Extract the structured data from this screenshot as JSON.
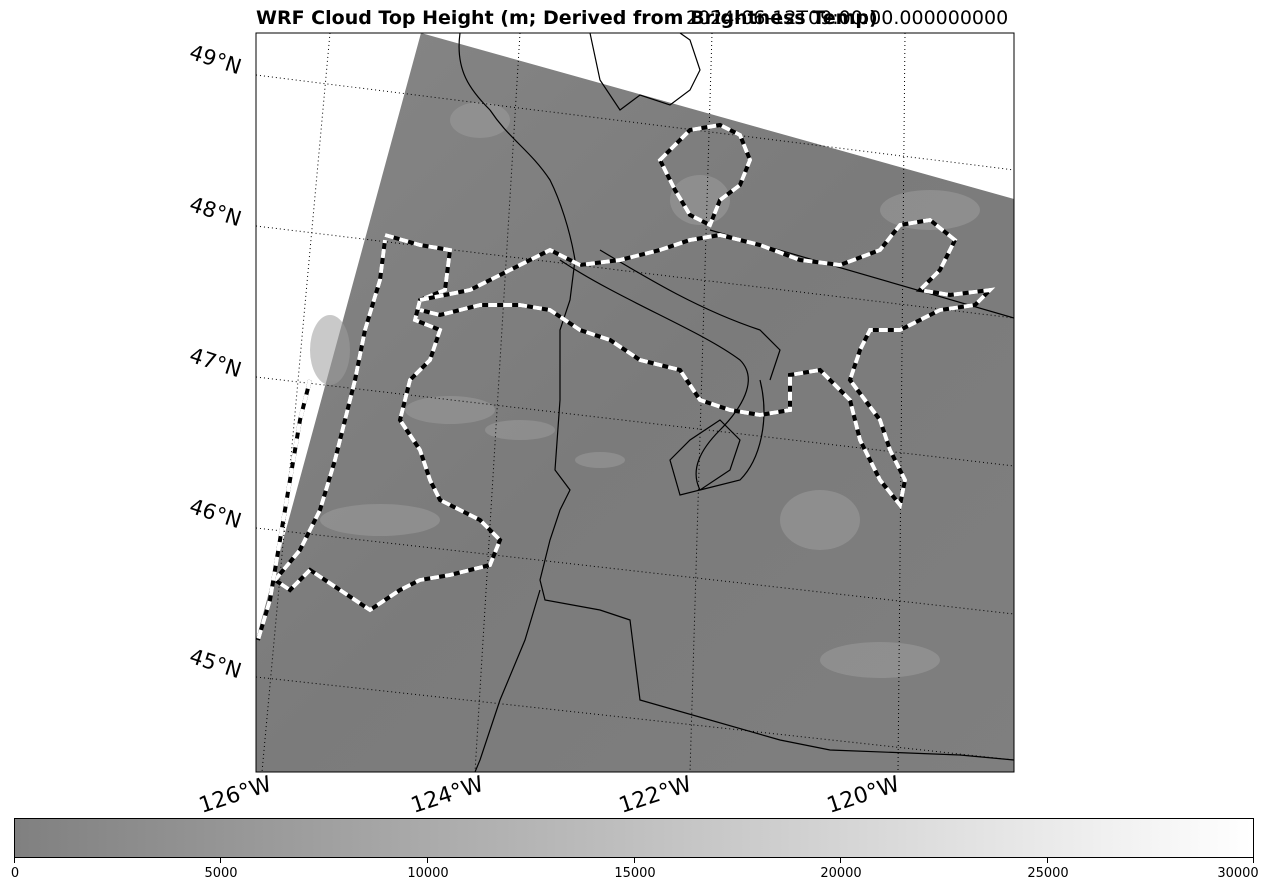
{
  "title": {
    "main": "WRF Cloud Top Height (m; Derived from Brightness Temp)",
    "timestamp": "2024-06-12T09:00:00.000000000"
  },
  "map": {
    "latitude_labels": [
      "49°N",
      "48°N",
      "47°N",
      "46°N",
      "45°N"
    ],
    "longitude_labels": [
      "126°W",
      "124°W",
      "122°W",
      "120°W"
    ],
    "background_color": "#7d7d7d",
    "contour_colors": [
      "#ffffff",
      "#000000"
    ]
  },
  "colorbar": {
    "min": 0,
    "max": 30000,
    "color_low": "#808080",
    "color_high": "#ffffff",
    "tick_labels": [
      "0",
      "5000",
      "10000",
      "15000",
      "20000",
      "25000",
      "30000"
    ]
  }
}
